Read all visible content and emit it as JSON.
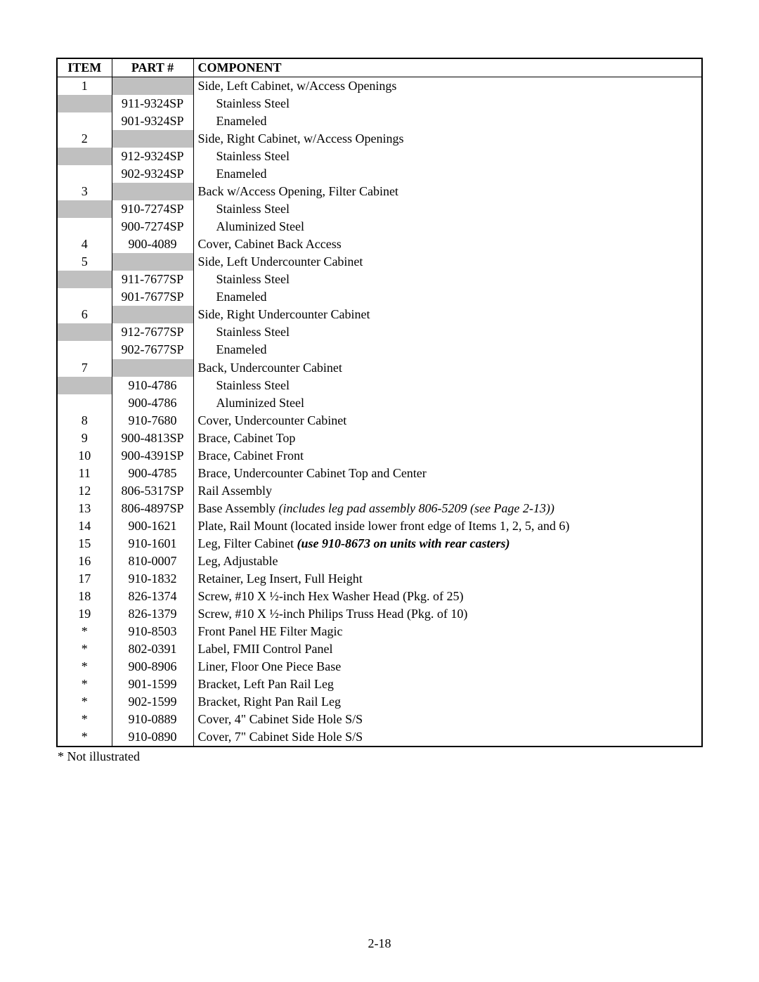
{
  "headers": {
    "item": "ITEM",
    "part": "PART #",
    "component": "COMPONENT"
  },
  "styling": {
    "shaded_bg": "#c0c0c0",
    "border_color": "#000000",
    "font_family": "Times New Roman",
    "font_size_pt": 13
  },
  "rows": [
    {
      "item": "1",
      "part": "",
      "component": "Side, Left Cabinet, w/Access Openings",
      "indent": 0,
      "item_shaded": false,
      "part_shaded": true,
      "comp_shaded": false
    },
    {
      "item": "",
      "part": "911-9324SP",
      "component": "Stainless Steel",
      "indent": 1,
      "item_shaded": true,
      "part_shaded": false,
      "comp_shaded": false
    },
    {
      "item": "",
      "part": "901-9324SP",
      "component": "Enameled",
      "indent": 1,
      "item_shaded": false,
      "part_shaded": false,
      "comp_shaded": false
    },
    {
      "item": "2",
      "part": "",
      "component": "Side, Right Cabinet, w/Access Openings",
      "indent": 0,
      "item_shaded": false,
      "part_shaded": true,
      "comp_shaded": false
    },
    {
      "item": "",
      "part": "912-9324SP",
      "component": "Stainless Steel",
      "indent": 1,
      "item_shaded": true,
      "part_shaded": false,
      "comp_shaded": false
    },
    {
      "item": "",
      "part": "902-9324SP",
      "component": "Enameled",
      "indent": 1,
      "item_shaded": false,
      "part_shaded": false,
      "comp_shaded": false
    },
    {
      "item": "3",
      "part": "",
      "component": "Back w/Access Opening, Filter Cabinet",
      "indent": 0,
      "item_shaded": false,
      "part_shaded": true,
      "comp_shaded": false
    },
    {
      "item": "",
      "part": "910-7274SP",
      "component": "Stainless Steel",
      "indent": 1,
      "item_shaded": true,
      "part_shaded": false,
      "comp_shaded": false
    },
    {
      "item": "",
      "part": "900-7274SP",
      "component": "Aluminized Steel",
      "indent": 1,
      "item_shaded": false,
      "part_shaded": false,
      "comp_shaded": false
    },
    {
      "item": "4",
      "part": "900-4089",
      "component": "Cover, Cabinet Back Access",
      "indent": 0,
      "item_shaded": false,
      "part_shaded": false,
      "comp_shaded": false
    },
    {
      "item": "5",
      "part": "",
      "component": "Side, Left Undercounter Cabinet",
      "indent": 0,
      "item_shaded": false,
      "part_shaded": true,
      "comp_shaded": false
    },
    {
      "item": "",
      "part": "911-7677SP",
      "component": "Stainless Steel",
      "indent": 1,
      "item_shaded": true,
      "part_shaded": false,
      "comp_shaded": false
    },
    {
      "item": "",
      "part": "901-7677SP",
      "component": "Enameled",
      "indent": 1,
      "item_shaded": false,
      "part_shaded": false,
      "comp_shaded": false
    },
    {
      "item": "6",
      "part": "",
      "component": "Side, Right Undercounter Cabinet",
      "indent": 0,
      "item_shaded": false,
      "part_shaded": true,
      "comp_shaded": false
    },
    {
      "item": "",
      "part": "912-7677SP",
      "component": "Stainless Steel",
      "indent": 1,
      "item_shaded": true,
      "part_shaded": false,
      "comp_shaded": false
    },
    {
      "item": "",
      "part": "902-7677SP",
      "component": "Enameled",
      "indent": 1,
      "item_shaded": false,
      "part_shaded": false,
      "comp_shaded": false
    },
    {
      "item": "7",
      "part": "",
      "component": "Back, Undercounter Cabinet",
      "indent": 0,
      "item_shaded": false,
      "part_shaded": true,
      "comp_shaded": false
    },
    {
      "item": "",
      "part": "910-4786",
      "component": "Stainless Steel",
      "indent": 1,
      "item_shaded": true,
      "part_shaded": false,
      "comp_shaded": false
    },
    {
      "item": "",
      "part": "900-4786",
      "component": "Aluminized Steel",
      "indent": 1,
      "item_shaded": false,
      "part_shaded": false,
      "comp_shaded": false
    },
    {
      "item": "8",
      "part": "910-7680",
      "component": "Cover, Undercounter Cabinet",
      "indent": 0,
      "item_shaded": false,
      "part_shaded": false,
      "comp_shaded": false
    },
    {
      "item": "9",
      "part": "900-4813SP",
      "component": "Brace, Cabinet Top",
      "indent": 0,
      "item_shaded": false,
      "part_shaded": false,
      "comp_shaded": false
    },
    {
      "item": "10",
      "part": "900-4391SP",
      "component": "Brace, Cabinet Front",
      "indent": 0,
      "item_shaded": false,
      "part_shaded": false,
      "comp_shaded": false
    },
    {
      "item": "11",
      "part": "900-4785",
      "component": "Brace, Undercounter Cabinet Top and Center",
      "indent": 0,
      "item_shaded": false,
      "part_shaded": false,
      "comp_shaded": false
    },
    {
      "item": "12",
      "part": "806-5317SP",
      "component": "Rail Assembly",
      "indent": 0,
      "item_shaded": false,
      "part_shaded": false,
      "comp_shaded": false
    },
    {
      "item": "13",
      "part": "806-4897SP",
      "component": "Base Assembly ",
      "italic_suffix": "(includes leg pad assembly 806-5209 (see Page 2-13))",
      "indent": 0,
      "item_shaded": false,
      "part_shaded": false,
      "comp_shaded": false
    },
    {
      "item": "14",
      "part": "900-1621",
      "component": "Plate, Rail Mount (located inside lower front edge of Items 1, 2, 5, and 6)",
      "indent": 0,
      "item_shaded": false,
      "part_shaded": false,
      "comp_shaded": false
    },
    {
      "item": "15",
      "part": "910-1601",
      "component": "Leg, Filter Cabinet ",
      "italic_bold_suffix": "(use 910-8673 on units with rear casters)",
      "indent": 0,
      "item_shaded": false,
      "part_shaded": false,
      "comp_shaded": false
    },
    {
      "item": "16",
      "part": "810-0007",
      "component": "Leg, Adjustable",
      "indent": 0,
      "item_shaded": false,
      "part_shaded": false,
      "comp_shaded": false
    },
    {
      "item": "17",
      "part": "910-1832",
      "component": "Retainer, Leg Insert, Full Height",
      "indent": 0,
      "item_shaded": false,
      "part_shaded": false,
      "comp_shaded": false
    },
    {
      "item": "18",
      "part": "826-1374",
      "component": "Screw, #10 X ½-inch Hex Washer Head (Pkg. of 25)",
      "indent": 0,
      "item_shaded": false,
      "part_shaded": false,
      "comp_shaded": false
    },
    {
      "item": "19",
      "part": "826-1379",
      "component": "Screw, #10 X ½-inch Philips Truss Head (Pkg. of 10)",
      "indent": 0,
      "item_shaded": false,
      "part_shaded": false,
      "comp_shaded": false
    },
    {
      "item": "*",
      "part": "910-8503",
      "component": "Front Panel HE Filter Magic",
      "indent": 0,
      "item_shaded": false,
      "part_shaded": false,
      "comp_shaded": false
    },
    {
      "item": "*",
      "part": "802-0391",
      "component": "Label, FMII Control Panel",
      "indent": 0,
      "item_shaded": false,
      "part_shaded": false,
      "comp_shaded": false
    },
    {
      "item": "*",
      "part": "900-8906",
      "component": "Liner, Floor One Piece Base",
      "indent": 0,
      "item_shaded": false,
      "part_shaded": false,
      "comp_shaded": false
    },
    {
      "item": "*",
      "part": "901-1599",
      "component": "Bracket, Left Pan Rail Leg",
      "indent": 0,
      "item_shaded": false,
      "part_shaded": false,
      "comp_shaded": false
    },
    {
      "item": "*",
      "part": "902-1599",
      "component": "Bracket, Right Pan Rail Leg",
      "indent": 0,
      "item_shaded": false,
      "part_shaded": false,
      "comp_shaded": false
    },
    {
      "item": "*",
      "part": "910-0889",
      "component": "Cover, 4\" Cabinet Side Hole S/S",
      "indent": 0,
      "item_shaded": false,
      "part_shaded": false,
      "comp_shaded": false
    },
    {
      "item": "*",
      "part": "910-0890",
      "component": "Cover, 7\" Cabinet Side Hole S/S",
      "indent": 0,
      "item_shaded": false,
      "part_shaded": false,
      "comp_shaded": false
    }
  ],
  "footnote": "* Not illustrated",
  "page_number": "2-18"
}
